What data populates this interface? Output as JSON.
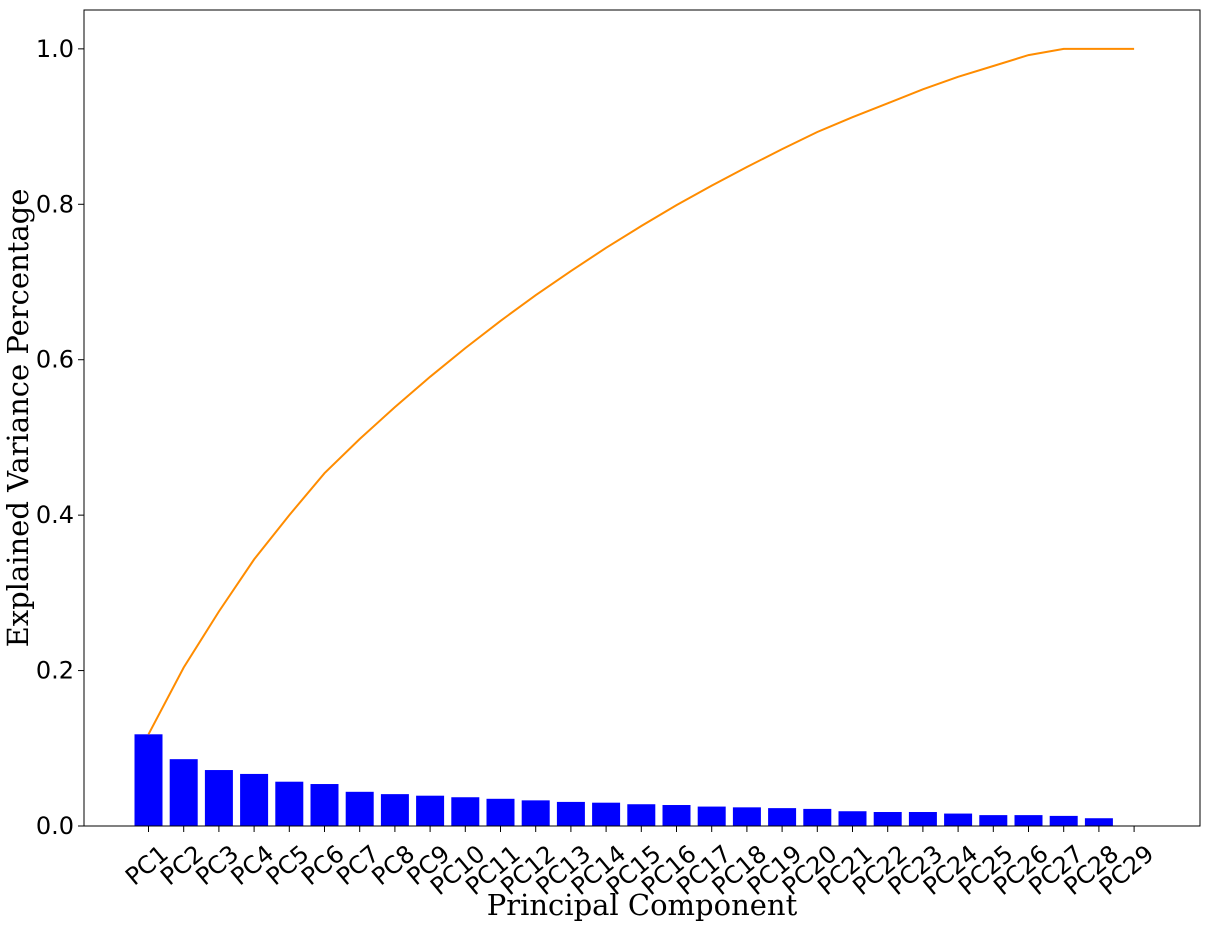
{
  "chart_data": {
    "type": "bar",
    "categories": [
      "PC1",
      "PC2",
      "PC3",
      "PC4",
      "PC5",
      "PC6",
      "PC7",
      "PC8",
      "PC9",
      "PC10",
      "PC11",
      "PC12",
      "PC13",
      "PC14",
      "PC15",
      "PC16",
      "PC17",
      "PC18",
      "PC19",
      "PC20",
      "PC21",
      "PC22",
      "PC23",
      "PC24",
      "PC25",
      "PC26",
      "PC27",
      "PC28",
      "PC29"
    ],
    "series": [
      {
        "kind": "bar",
        "color": "#0000ff",
        "values": [
          0.118,
          0.086,
          0.072,
          0.067,
          0.057,
          0.054,
          0.044,
          0.041,
          0.039,
          0.037,
          0.035,
          0.033,
          0.031,
          0.03,
          0.028,
          0.027,
          0.025,
          0.024,
          0.023,
          0.022,
          0.019,
          0.018,
          0.018,
          0.016,
          0.014,
          0.014,
          0.013,
          0.01,
          0.0
        ]
      },
      {
        "kind": "line",
        "color": "#ff8c00",
        "values": [
          0.118,
          0.204,
          0.276,
          0.343,
          0.4,
          0.454,
          0.498,
          0.539,
          0.578,
          0.615,
          0.65,
          0.683,
          0.714,
          0.744,
          0.772,
          0.799,
          0.824,
          0.848,
          0.871,
          0.893,
          0.912,
          0.93,
          0.948,
          0.964,
          0.978,
          0.992,
          1.0,
          1.0,
          1.0
        ]
      }
    ],
    "xlabel": "Principal Component",
    "ylabel": "Explained Variance Percentage",
    "ylim": [
      0,
      1.05
    ],
    "yticks": [
      "0.0",
      "0.2",
      "0.4",
      "0.6",
      "0.8",
      "1.0"
    ],
    "ytick_values": [
      0.0,
      0.2,
      0.4,
      0.6,
      0.8,
      1.0
    ],
    "grid": false,
    "legend": "none"
  }
}
